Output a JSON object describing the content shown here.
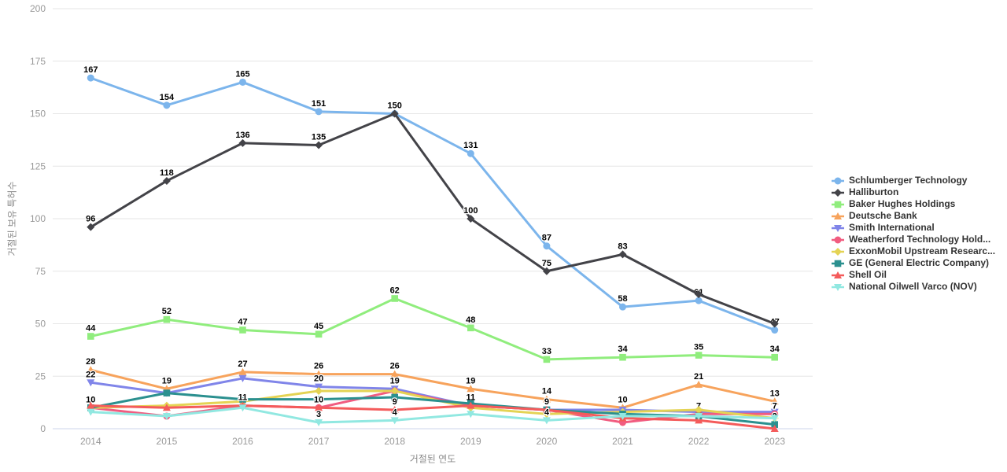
{
  "chart_data": {
    "type": "line",
    "title": "",
    "xlabel": "거절된 연도",
    "ylabel": "거절된 보유 특허수",
    "x": [
      "2014",
      "2015",
      "2016",
      "2017",
      "2018",
      "2019",
      "2020",
      "2021",
      "2022",
      "2023"
    ],
    "ylim": [
      0,
      200
    ],
    "y_ticks": [
      0,
      25,
      50,
      75,
      100,
      125,
      150,
      175,
      200
    ],
    "grid": true,
    "legend_position": "right",
    "series": [
      {
        "name": "Schlumberger Technology",
        "color": "#7cb5ec",
        "symbol": "circle",
        "values": [
          167,
          154,
          165,
          151,
          150,
          131,
          87,
          58,
          61,
          47
        ],
        "labeled_points": [
          0,
          1,
          2,
          3,
          5,
          6,
          7,
          8,
          9
        ]
      },
      {
        "name": "Halliburton",
        "color": "#434348",
        "symbol": "diamond",
        "values": [
          96,
          118,
          136,
          135,
          150,
          100,
          75,
          83,
          64,
          50
        ],
        "labeled_points": [
          0,
          1,
          2,
          3,
          4,
          5,
          6,
          7
        ]
      },
      {
        "name": "Baker Hughes Holdings",
        "color": "#90ed7d",
        "symbol": "square",
        "values": [
          44,
          52,
          47,
          45,
          62,
          48,
          33,
          34,
          35,
          34
        ],
        "labeled_points": [
          0,
          1,
          2,
          3,
          4,
          5,
          6,
          7,
          8,
          9
        ]
      },
      {
        "name": "Deutsche Bank",
        "color": "#f7a35c",
        "symbol": "triangle",
        "values": [
          28,
          19,
          27,
          26,
          26,
          19,
          14,
          10,
          21,
          13
        ],
        "labeled_points": [
          0,
          1,
          2,
          3,
          4,
          5,
          6,
          7,
          8,
          9
        ]
      },
      {
        "name": "Smith International",
        "color": "#8085e9",
        "symbol": "triangle-down",
        "values": [
          22,
          17,
          24,
          20,
          19,
          11,
          9,
          9,
          8,
          8
        ],
        "labeled_points": [
          0,
          3,
          4
        ]
      },
      {
        "name": "Weatherford Technology Hold...",
        "color": "#f15c80",
        "symbol": "circle",
        "values": [
          10,
          6,
          11,
          10,
          18,
          11,
          9,
          3,
          7,
          7
        ],
        "labeled_points": [
          0,
          1,
          5,
          7,
          8,
          9
        ]
      },
      {
        "name": "ExxonMobil Upstream Researc...",
        "color": "#e4d354",
        "symbol": "diamond",
        "values": [
          10,
          11,
          13,
          18,
          18,
          10,
          7,
          8,
          9,
          5
        ],
        "labeled_points": []
      },
      {
        "name": "GE (General Electric Company)",
        "color": "#2b908f",
        "symbol": "square",
        "values": [
          10,
          17,
          14,
          14,
          15,
          12,
          9,
          7,
          6,
          2
        ],
        "labeled_points": [
          9
        ]
      },
      {
        "name": "Shell Oil",
        "color": "#f45b5b",
        "symbol": "triangle",
        "values": [
          11,
          10,
          11,
          10,
          9,
          11,
          9,
          5,
          4,
          0
        ],
        "labeled_points": [
          2,
          3,
          4,
          6
        ]
      },
      {
        "name": "National Oilwell Varco (NOV)",
        "color": "#91e8e1",
        "symbol": "triangle-down",
        "values": [
          8,
          6,
          10,
          3,
          4,
          7,
          4,
          6,
          6,
          5
        ],
        "labeled_points": [
          3,
          4,
          6
        ]
      }
    ]
  },
  "colors": {
    "background": "#ffffff",
    "grid_line": "#e6e6e6",
    "axis_line": "#ccd6eb",
    "tick_label": "#999999",
    "axis_title": "#8a8a8a",
    "data_label": "#000000",
    "legend_text": "#333333"
  }
}
